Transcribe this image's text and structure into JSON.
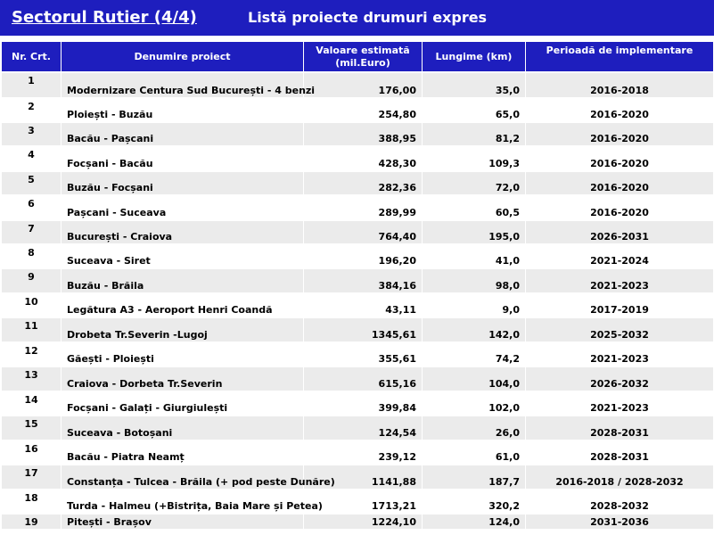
{
  "header": {
    "left_title": "Sectorul Rutier (4/4)",
    "right_title": "Listă proiecte drumuri expres"
  },
  "table": {
    "columns": [
      "Nr. Crt.",
      "Denumire proiect",
      "Valoare estimată (mil.Euro)",
      "Lungime (km)",
      "Perioadă de implementare"
    ],
    "rows": [
      {
        "nr": "1",
        "name": "Modernizare Centura Sud București - 4 benzi",
        "value": "176,00",
        "length": "35,0",
        "period": "2016-2018"
      },
      {
        "nr": "2",
        "name": "Ploiești - Buzău",
        "value": "254,80",
        "length": "65,0",
        "period": "2016-2020"
      },
      {
        "nr": "3",
        "name": "Bacău - Pașcani",
        "value": "388,95",
        "length": "81,2",
        "period": "2016-2020"
      },
      {
        "nr": "4",
        "name": "Focșani - Bacău",
        "value": "428,30",
        "length": "109,3",
        "period": "2016-2020"
      },
      {
        "nr": "5",
        "name": "Buzău - Focșani",
        "value": "282,36",
        "length": "72,0",
        "period": "2016-2020"
      },
      {
        "nr": "6",
        "name": "Pașcani - Suceava",
        "value": "289,99",
        "length": "60,5",
        "period": "2016-2020"
      },
      {
        "nr": "7",
        "name": "București - Craiova",
        "value": "764,40",
        "length": "195,0",
        "period": "2026-2031"
      },
      {
        "nr": "8",
        "name": "Suceava - Siret",
        "value": "196,20",
        "length": "41,0",
        "period": "2021-2024"
      },
      {
        "nr": "9",
        "name": "Buzău - Brăila",
        "value": "384,16",
        "length": "98,0",
        "period": "2021-2023"
      },
      {
        "nr": "10",
        "name": "Legătura A3 - Aeroport Henri Coandă",
        "value": "43,11",
        "length": "9,0",
        "period": "2017-2019"
      },
      {
        "nr": "11",
        "name": "Drobeta Tr.Severin -Lugoj",
        "value": "1345,61",
        "length": "142,0",
        "period": "2025-2032"
      },
      {
        "nr": "12",
        "name": "Găești - Ploiești",
        "value": "355,61",
        "length": "74,2",
        "period": "2021-2023"
      },
      {
        "nr": "13",
        "name": "Craiova - Dorbeta Tr.Severin",
        "value": "615,16",
        "length": "104,0",
        "period": "2026-2032"
      },
      {
        "nr": "14",
        "name": "Focșani - Galați - Giurgiulești",
        "value": "399,84",
        "length": "102,0",
        "period": "2021-2023"
      },
      {
        "nr": "15",
        "name": "Suceava - Botoșani",
        "value": "124,54",
        "length": "26,0",
        "period": "2028-2031"
      },
      {
        "nr": "16",
        "name": "Bacău - Piatra Neamț",
        "value": "239,12",
        "length": "61,0",
        "period": "2028-2031"
      },
      {
        "nr": "17",
        "name": "Constanța - Tulcea - Brăila (+ pod peste Dunăre)",
        "value": "1141,88",
        "length": "187,7",
        "period": "2016-2018 / 2028-2032"
      },
      {
        "nr": "18",
        "name": "Turda - Halmeu (+Bistrița, Baia Mare și Petea)",
        "value": "1713,21",
        "length": "320,2",
        "period": "2028-2032"
      },
      {
        "nr": "19",
        "name": "Pitești - Brașov",
        "value": "1224,10",
        "length": "124,0",
        "period": "2031-2036"
      }
    ]
  }
}
